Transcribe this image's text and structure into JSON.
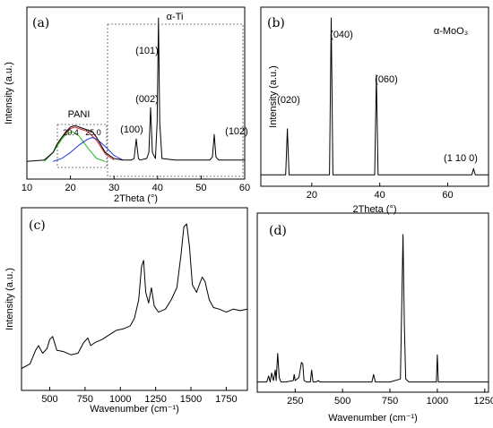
{
  "chart_data": [
    {
      "type": "line",
      "panel_label": "(a)",
      "xlabel": "2Theta (°)",
      "ylabel": "Intensity (a.u.)",
      "xlim": [
        10,
        60
      ],
      "xticks": [
        10,
        20,
        30,
        40,
        50,
        60
      ],
      "annotations": {
        "phase": "α-Ti",
        "pani": "PANI",
        "pani_peak1": "20.4",
        "pani_peak2": "25.0",
        "peaks": [
          {
            "label": "(100)",
            "x": 35.1
          },
          {
            "label": "(002)",
            "x": 38.4
          },
          {
            "label": "(101)",
            "x": 40.2
          },
          {
            "label": "(102)",
            "x": 53.0
          }
        ]
      },
      "series": [
        {
          "color": "#000000",
          "x": [
            10,
            14,
            16,
            17,
            18,
            19,
            20,
            21,
            22,
            23,
            24,
            25,
            26,
            27,
            28,
            30,
            32,
            34,
            34.6,
            35.1,
            35.6,
            36,
            37.5,
            38,
            38.4,
            38.8,
            39.5,
            39.9,
            40.2,
            40.5,
            41,
            44,
            48,
            52,
            52.6,
            53,
            53.4,
            54,
            58,
            60
          ],
          "y": [
            0.04,
            0.05,
            0.1,
            0.16,
            0.2,
            0.24,
            0.27,
            0.28,
            0.27,
            0.26,
            0.25,
            0.24,
            0.2,
            0.15,
            0.1,
            0.06,
            0.05,
            0.05,
            0.06,
            0.19,
            0.06,
            0.05,
            0.06,
            0.1,
            0.4,
            0.1,
            0.06,
            0.3,
            1.0,
            0.3,
            0.06,
            0.05,
            0.05,
            0.05,
            0.07,
            0.22,
            0.07,
            0.05,
            0.05,
            0.05
          ]
        },
        {
          "color": "#dd2222",
          "x": [
            14,
            16,
            18,
            20,
            21,
            22,
            24,
            26,
            28,
            30
          ],
          "y": [
            0.05,
            0.1,
            0.2,
            0.26,
            0.27,
            0.26,
            0.24,
            0.18,
            0.09,
            0.05
          ]
        },
        {
          "color": "#22bb22",
          "x": [
            14,
            16,
            18,
            19,
            20.4,
            22,
            24,
            26,
            28
          ],
          "y": [
            0.04,
            0.1,
            0.19,
            0.22,
            0.24,
            0.21,
            0.13,
            0.06,
            0.04
          ]
        },
        {
          "color": "#2233dd",
          "x": [
            16,
            18,
            20,
            22,
            24,
            25,
            26,
            28,
            30,
            32
          ],
          "y": [
            0.04,
            0.06,
            0.1,
            0.15,
            0.19,
            0.2,
            0.19,
            0.14,
            0.08,
            0.05
          ]
        }
      ]
    },
    {
      "type": "line",
      "panel_label": "(b)",
      "xlabel": "2Theta (°)",
      "ylabel": "Intensity (a.u.)",
      "xlim": [
        5,
        72
      ],
      "xticks": [
        20,
        40,
        60
      ],
      "annotations": {
        "phase": "α-MoO₃",
        "peaks": [
          {
            "label": "(020)",
            "x": 12.8
          },
          {
            "label": "(040)",
            "x": 25.7
          },
          {
            "label": "(060)",
            "x": 39.0
          },
          {
            "label": "(1 10 0)",
            "x": 67.6
          }
        ]
      },
      "series": [
        {
          "color": "#000000",
          "x": [
            5,
            12.3,
            12.8,
            13.3,
            23,
            25.2,
            25.7,
            26.2,
            30,
            38.5,
            39.0,
            39.5,
            50,
            67.1,
            67.6,
            68.1,
            72
          ],
          "y": [
            0.01,
            0.01,
            0.3,
            0.01,
            0.01,
            0.01,
            1.0,
            0.01,
            0.01,
            0.01,
            0.64,
            0.01,
            0.01,
            0.01,
            0.05,
            0.01,
            0.01
          ]
        }
      ]
    },
    {
      "type": "line",
      "panel_label": "(c)",
      "xlabel": "Wavenumber (cm⁻¹)",
      "ylabel": "Intensity (a.u.)",
      "xlim": [
        300,
        1900
      ],
      "xticks": [
        500,
        750,
        1000,
        1250,
        1500,
        1750
      ],
      "series": [
        {
          "color": "#000000",
          "x": [
            300,
            360,
            400,
            420,
            450,
            480,
            500,
            520,
            550,
            600,
            650,
            700,
            740,
            770,
            790,
            820,
            870,
            920,
            970,
            1020,
            1070,
            1100,
            1130,
            1150,
            1165,
            1180,
            1200,
            1220,
            1240,
            1270,
            1320,
            1360,
            1400,
            1430,
            1450,
            1470,
            1490,
            1510,
            1540,
            1560,
            1580,
            1600,
            1630,
            1660,
            1700,
            1750,
            1800,
            1850,
            1900
          ],
          "y": [
            0.05,
            0.08,
            0.17,
            0.2,
            0.15,
            0.18,
            0.24,
            0.26,
            0.17,
            0.16,
            0.14,
            0.15,
            0.22,
            0.25,
            0.2,
            0.22,
            0.24,
            0.27,
            0.3,
            0.31,
            0.33,
            0.38,
            0.5,
            0.72,
            0.76,
            0.55,
            0.48,
            0.58,
            0.46,
            0.42,
            0.44,
            0.5,
            0.58,
            0.8,
            0.98,
            1.0,
            0.85,
            0.6,
            0.55,
            0.6,
            0.65,
            0.62,
            0.5,
            0.45,
            0.44,
            0.42,
            0.44,
            0.43,
            0.44
          ]
        }
      ]
    },
    {
      "type": "line",
      "panel_label": "(d)",
      "xlabel": "Wavenumber (cm⁻¹)",
      "ylabel": "",
      "xlim": [
        50,
        1270
      ],
      "xticks": [
        250,
        500,
        750,
        1000,
        1250
      ],
      "series": [
        {
          "color": "#000000",
          "x": [
            50,
            100,
            110,
            118,
            126,
            135,
            145,
            150,
            158,
            166,
            175,
            200,
            240,
            245,
            250,
            270,
            283,
            290,
            297,
            310,
            330,
            337,
            344,
            360,
            372,
            380,
            400,
            500,
            600,
            655,
            664,
            673,
            750,
            805,
            812,
            819,
            826,
            833,
            850,
            950,
            990,
            995,
            1000,
            1005,
            1050,
            1100,
            1200,
            1270
          ],
          "y": [
            0.02,
            0.02,
            0.06,
            0.02,
            0.08,
            0.03,
            0.1,
            0.03,
            0.21,
            0.05,
            0.02,
            0.02,
            0.03,
            0.07,
            0.03,
            0.05,
            0.15,
            0.14,
            0.03,
            0.02,
            0.02,
            0.1,
            0.02,
            0.02,
            0.03,
            0.02,
            0.02,
            0.02,
            0.02,
            0.02,
            0.07,
            0.02,
            0.02,
            0.04,
            0.5,
            1.0,
            0.4,
            0.04,
            0.02,
            0.02,
            0.02,
            0.02,
            0.2,
            0.02,
            0.02,
            0.02,
            0.02,
            0.02
          ]
        }
      ]
    }
  ]
}
